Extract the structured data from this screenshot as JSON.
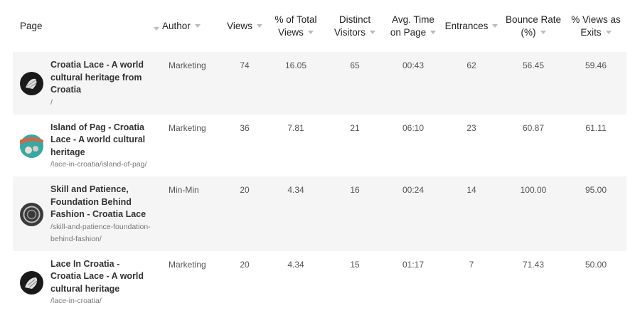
{
  "table": {
    "headers": [
      "Page",
      "Author",
      "Views",
      "% of Total Views",
      "Distinct Visitors",
      "Avg. Time on Page",
      "Entrances",
      "Bounce Rate (%)",
      "% Views as Exits"
    ],
    "rows": [
      {
        "title": "Croatia Lace - A world cultural heritage from Croatia",
        "url": "/",
        "author": "Marketing",
        "stats": [
          "74",
          "16.05",
          "65",
          "00:43",
          "62",
          "56.45",
          "59.46"
        ]
      },
      {
        "title": "Island of Pag - Croatia Lace - A world cultural heritage",
        "url": "/lace-in-croatia/island-of-pag/",
        "author": "Marketing",
        "stats": [
          "36",
          "7.81",
          "21",
          "06:10",
          "23",
          "60.87",
          "61.11"
        ]
      },
      {
        "title": "Skill and Patience, Foundation Behind Fashion - Croatia Lace",
        "url": "/skill-and-patience-foundation-behind-fashion/",
        "author": "Min-Min",
        "stats": [
          "20",
          "4.34",
          "16",
          "00:24",
          "14",
          "100.00",
          "95.00"
        ]
      },
      {
        "title": "Lace In Croatia - Croatia Lace - A world cultural heritage",
        "url": "/lace-in-croatia/",
        "author": "Marketing",
        "stats": [
          "20",
          "4.34",
          "15",
          "01:17",
          "7",
          "71.43",
          "50.00"
        ]
      }
    ]
  }
}
